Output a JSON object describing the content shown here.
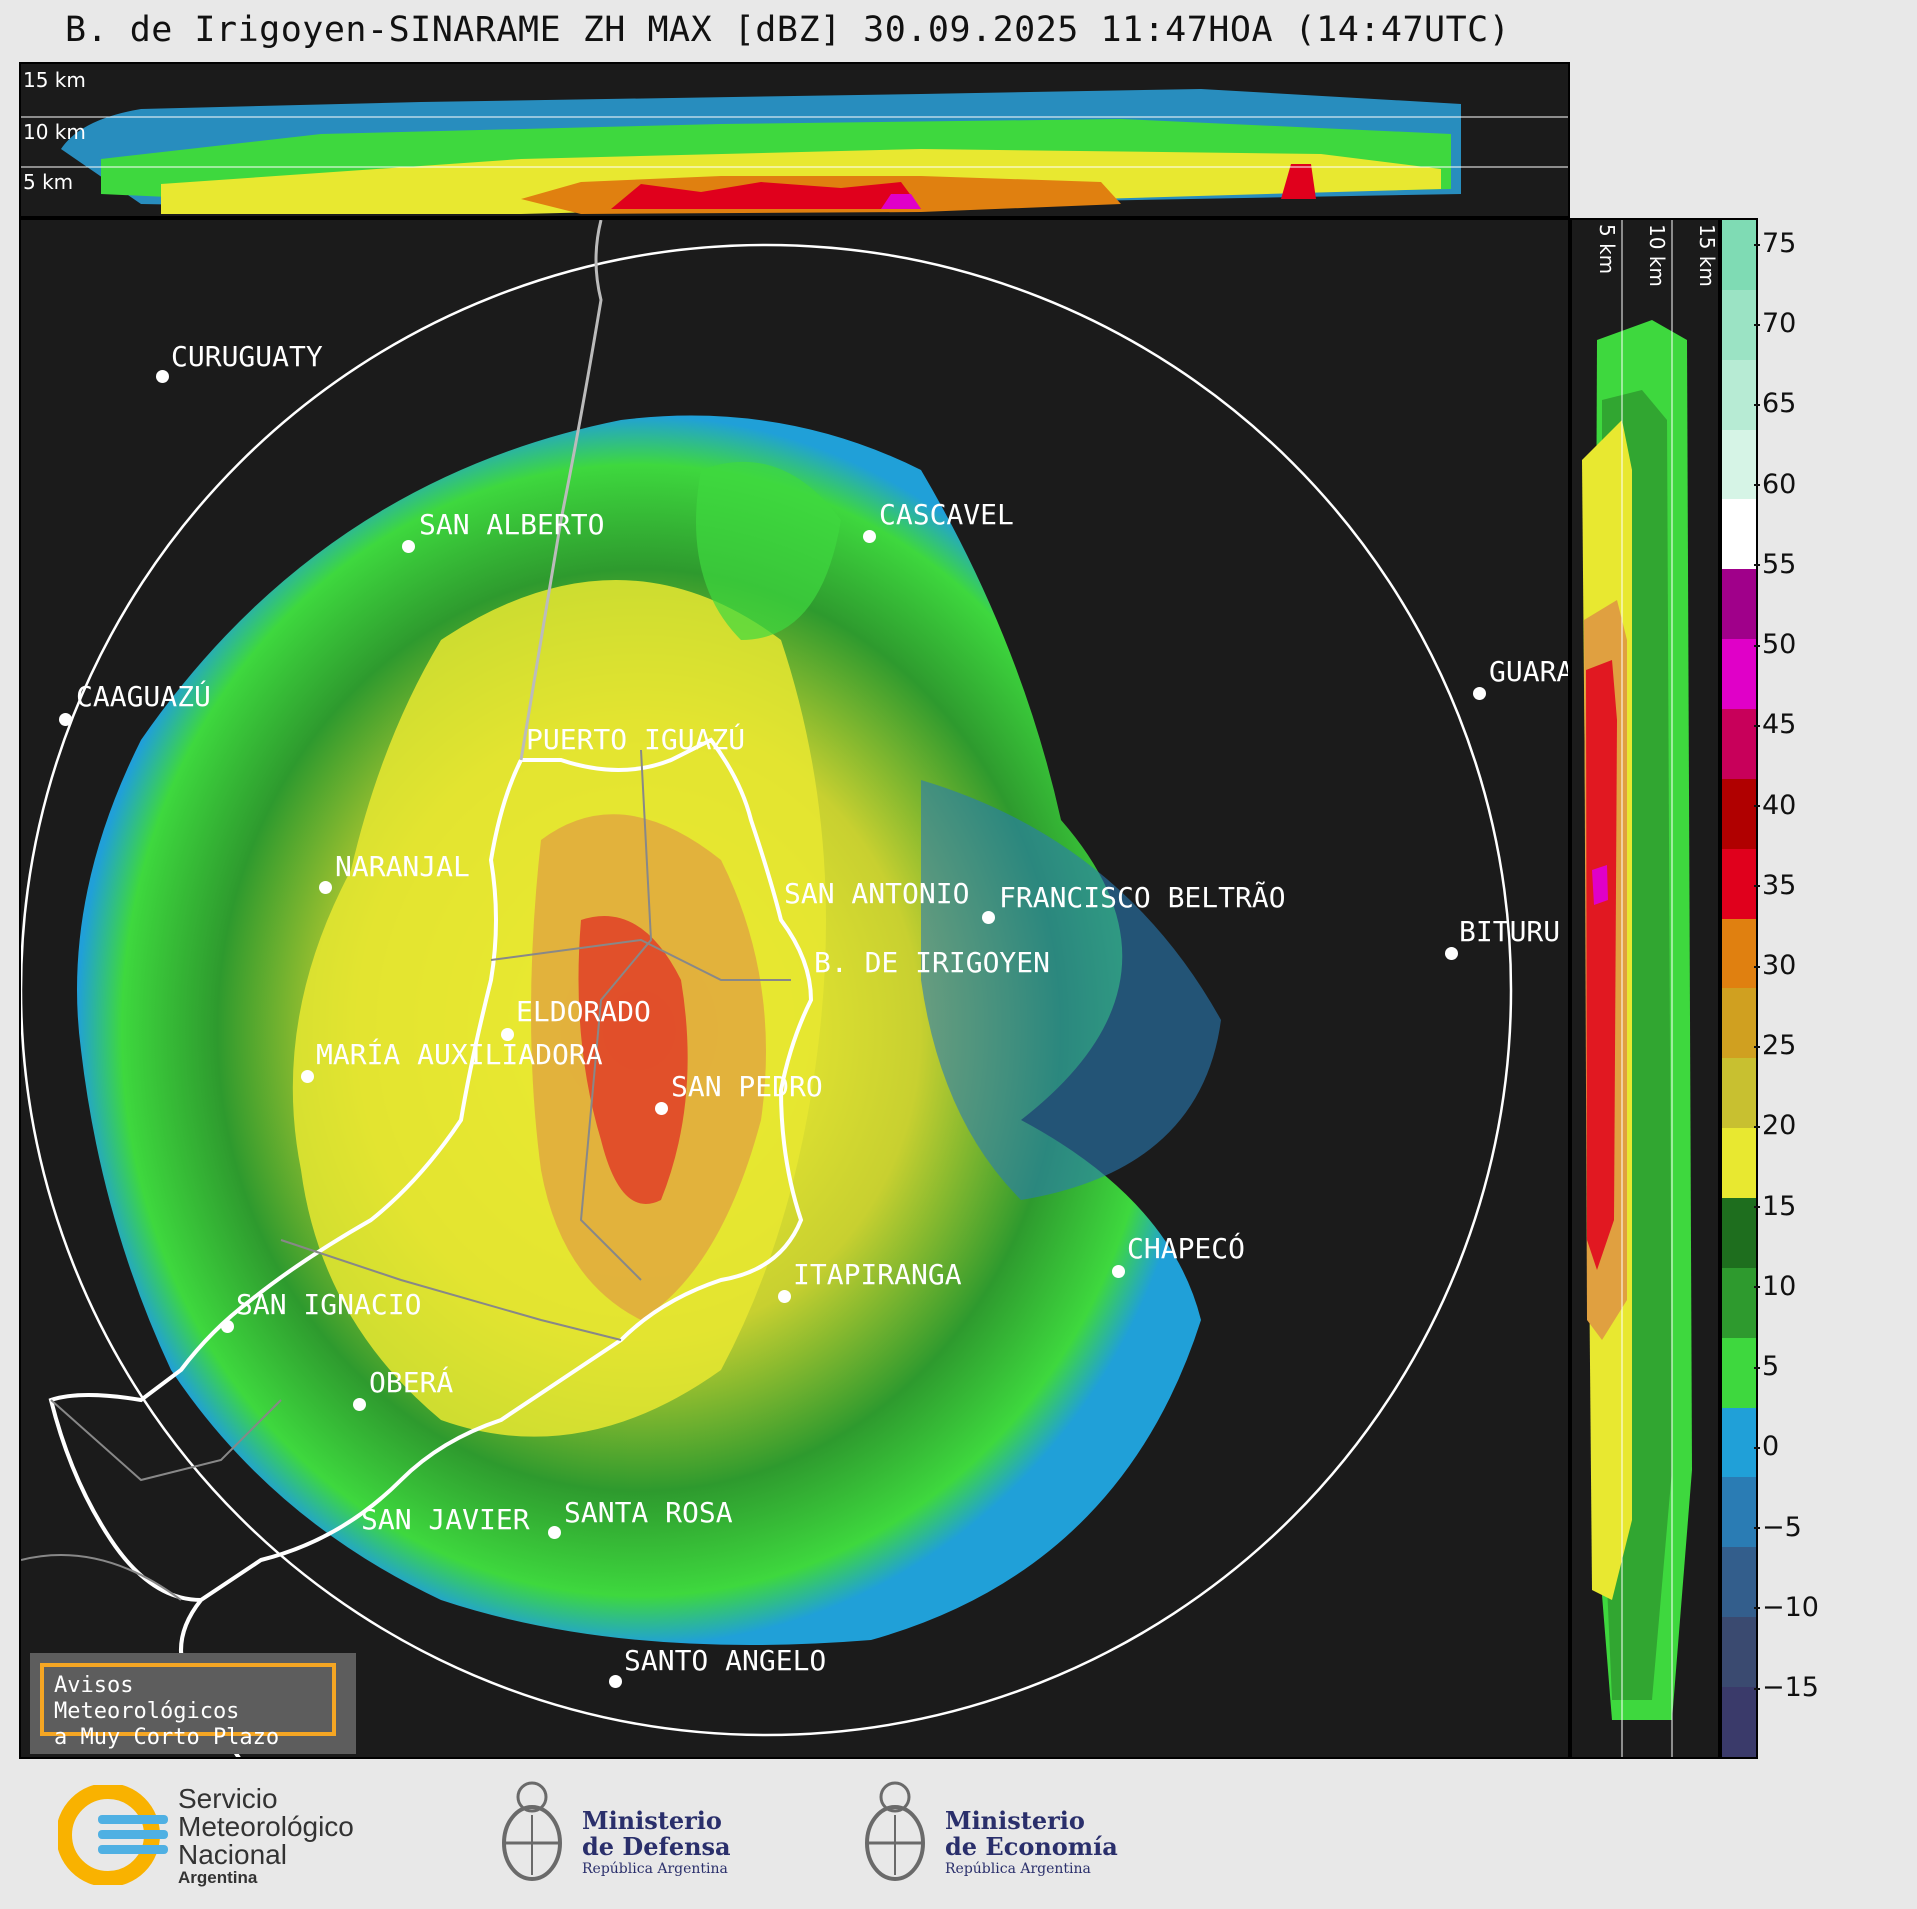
{
  "title": "B. de Irigoyen-SINARAME ZH MAX [dBZ] 30.09.2025 11:47HOA (14:47UTC)",
  "top_panel": {
    "altitude_labels": [
      "15 km",
      "10 km",
      "5 km"
    ]
  },
  "side_panel": {
    "altitude_labels": [
      "5 km",
      "10 km",
      "15 km"
    ]
  },
  "colorbar": {
    "ticks": [
      "75",
      "70",
      "65",
      "60",
      "55",
      "50",
      "45",
      "40",
      "35",
      "30",
      "25",
      "20",
      "15",
      "10",
      "5",
      "0",
      "−5",
      "−10",
      "−15"
    ],
    "colors": [
      "#7fdbb4",
      "#9be3c4",
      "#b7ebd4",
      "#d6f4e6",
      "#ffffff",
      "#a0008a",
      "#e000c8",
      "#c8005a",
      "#b00000",
      "#e0001c",
      "#e08010",
      "#d0a020",
      "#c8c030",
      "#e8e830",
      "#1e6e1e",
      "#2e9a2e",
      "#3ed83e",
      "#20a0d8",
      "#2a7cb4",
      "#335e8c",
      "#3a4a70",
      "#3a3a6a"
    ]
  },
  "cities": [
    {
      "name": "CURUGUATY"
    },
    {
      "name": "SAN ALBERTO"
    },
    {
      "name": "CASCAVEL"
    },
    {
      "name": "CAAGUAZÚ"
    },
    {
      "name": "GUARA"
    },
    {
      "name": "PUERTO IGUAZÚ"
    },
    {
      "name": "NARANJAL"
    },
    {
      "name": "SAN ANTONIO"
    },
    {
      "name": "FRANCISCO BELTRÃO"
    },
    {
      "name": "BITURU"
    },
    {
      "name": "B. DE IRIGOYEN"
    },
    {
      "name": "ELDORADO"
    },
    {
      "name": "MARÍA AUXILIADORA"
    },
    {
      "name": "SAN PEDRO"
    },
    {
      "name": "CHAPECÓ"
    },
    {
      "name": "SAN IGNACIO"
    },
    {
      "name": "ITAPIRANGA"
    },
    {
      "name": "OBERÁ"
    },
    {
      "name": "SAN JAVIER"
    },
    {
      "name": "SANTA ROSA"
    },
    {
      "name": "SANTO ANGELO"
    }
  ],
  "alert": {
    "line1": "Avisos Meteorológicos",
    "line2": "a Muy Corto Plazo"
  },
  "logos": {
    "smn": {
      "line1": "Servicio",
      "line2": "Meteorológico",
      "line3": "Nacional",
      "line4": "Argentina"
    },
    "defensa": {
      "line1": "Ministerio",
      "line2": "de Defensa",
      "line3": "República Argentina"
    },
    "economia": {
      "line1": "Ministerio",
      "line2": "de Economía",
      "line3": "República Argentina"
    }
  }
}
